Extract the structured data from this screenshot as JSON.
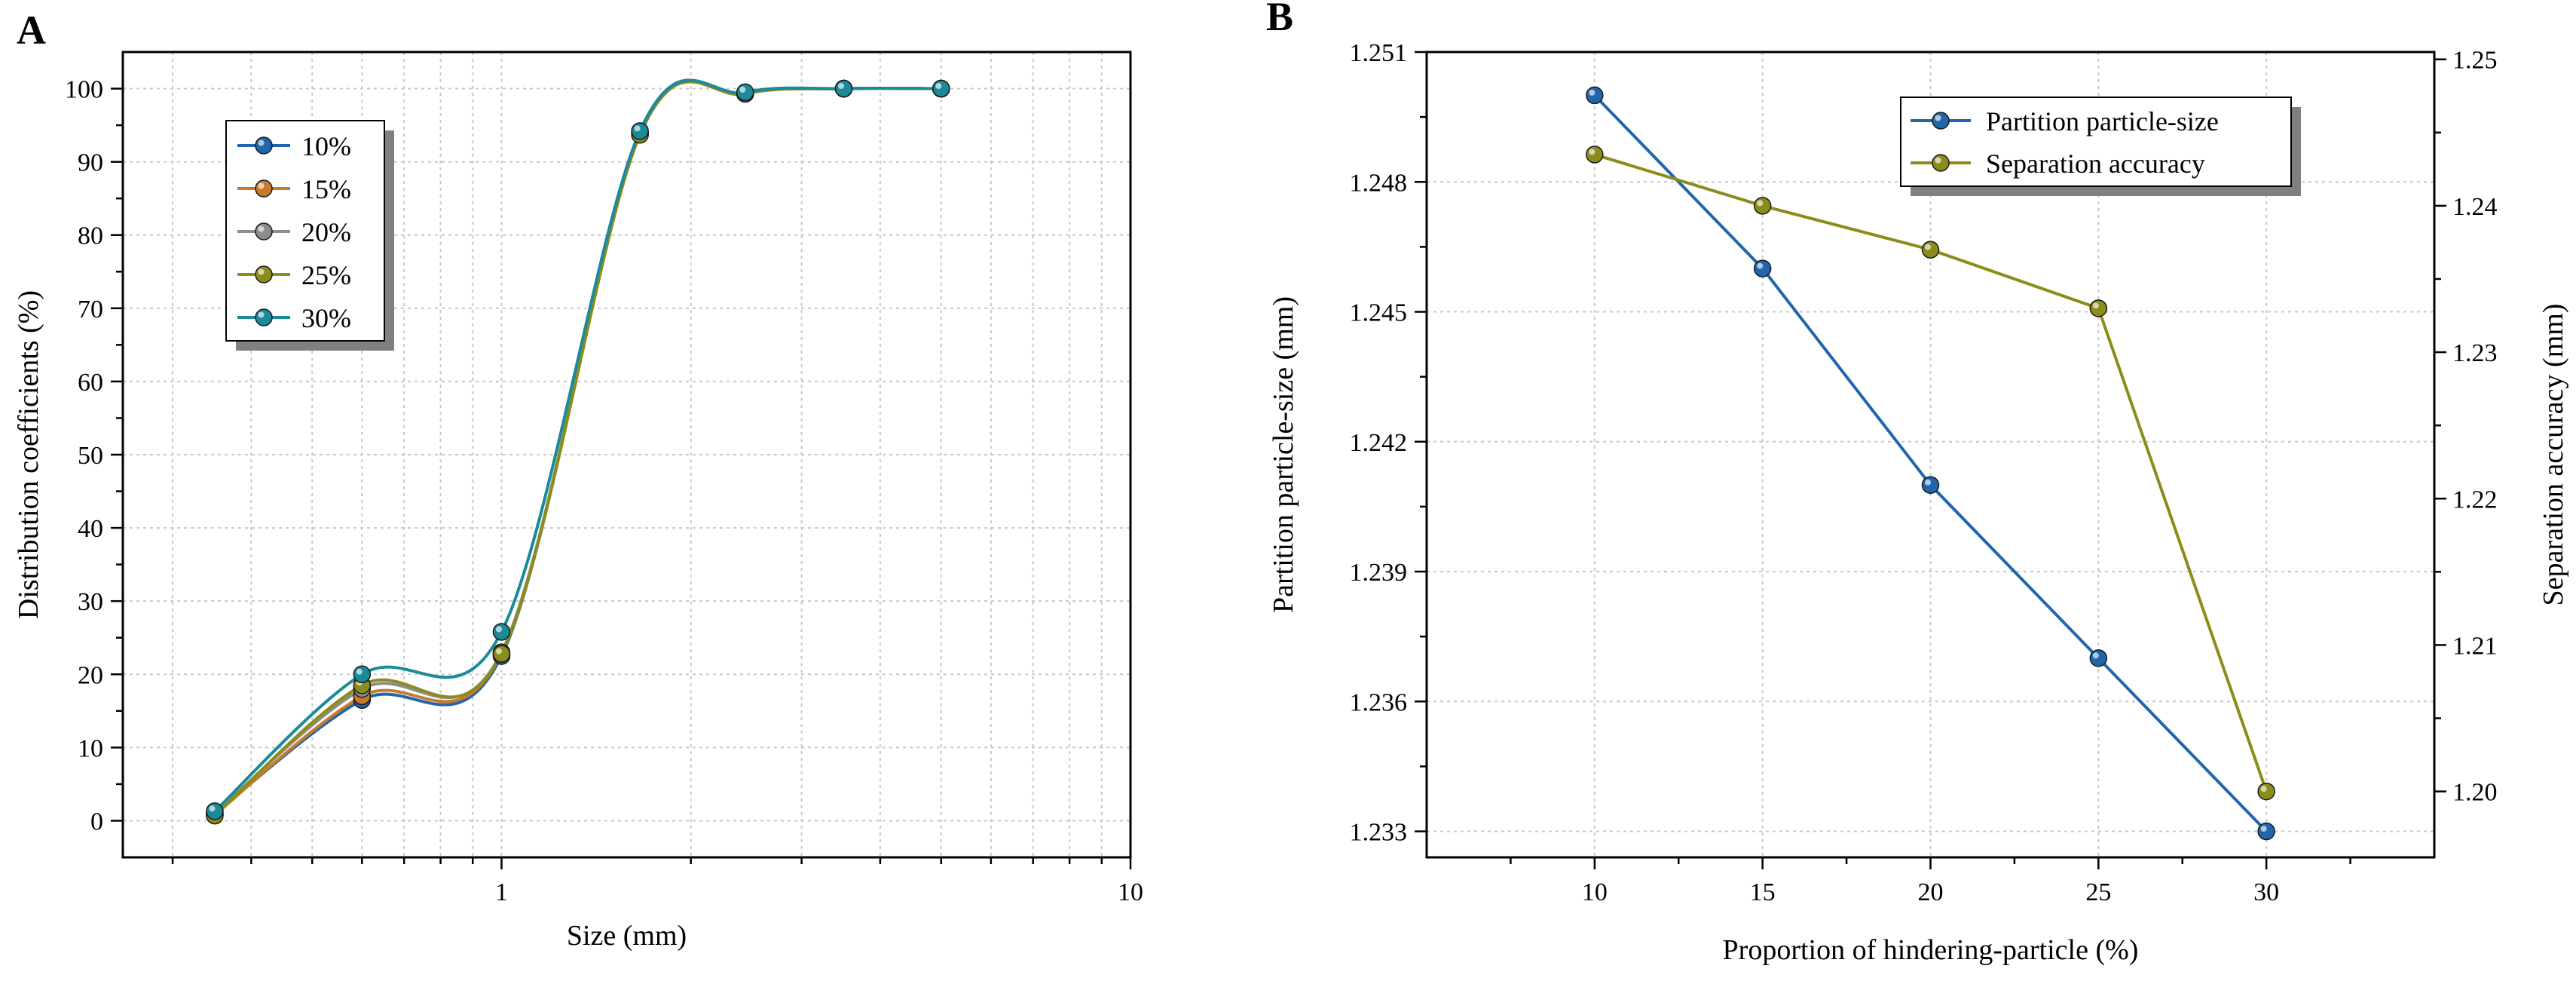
{
  "chart_data": [
    {
      "panel_label": "A",
      "type": "line",
      "xscale": "log",
      "xlabel": "Size (mm)",
      "ylabel": "Distribution coefficients (%)",
      "xlim": [
        0.25,
        10
      ],
      "ylim": [
        -5,
        105
      ],
      "xticks": [
        {
          "value": 1,
          "label": "1"
        },
        {
          "value": 10,
          "label": "10"
        }
      ],
      "yticks": [
        0,
        10,
        20,
        30,
        40,
        50,
        60,
        70,
        80,
        90,
        100
      ],
      "grid": true,
      "legend_position": "top-left",
      "x": [
        0.35,
        0.6,
        1.0,
        1.66,
        2.44,
        3.5,
        5.0
      ],
      "series": [
        {
          "name": "10%",
          "color": "#2166ac",
          "values": [
            1.0,
            16.5,
            22.5,
            94.0,
            99.3,
            100.0,
            100.0
          ]
        },
        {
          "name": "15%",
          "color": "#c87a2c",
          "values": [
            0.8,
            17.0,
            22.8,
            93.8,
            99.3,
            100.0,
            100.0
          ]
        },
        {
          "name": "20%",
          "color": "#8c8c8c",
          "values": [
            1.0,
            18.0,
            23.0,
            93.9,
            99.4,
            100.0,
            100.0
          ]
        },
        {
          "name": "25%",
          "color": "#8c8c1a",
          "values": [
            0.7,
            18.5,
            22.8,
            93.7,
            99.3,
            100.0,
            100.0
          ]
        },
        {
          "name": "30%",
          "color": "#1b8a99",
          "values": [
            1.3,
            20.0,
            25.8,
            94.2,
            99.5,
            100.0,
            100.0
          ]
        }
      ]
    },
    {
      "panel_label": "B",
      "type": "line",
      "xlabel": "Proportion of hindering-particle (%)",
      "ylabel": "Partition particle-size (mm)",
      "y2label": "Separation accuracy (mm)",
      "xlim": [
        5,
        35
      ],
      "ylim": [
        1.2324,
        1.251
      ],
      "y2lim": [
        1.1955,
        1.2505
      ],
      "xticks": [
        10,
        15,
        20,
        25,
        30
      ],
      "yticks": [
        "1.233",
        "1.236",
        "1.239",
        "1.242",
        "1.245",
        "1.248",
        "1.251"
      ],
      "y2ticks": [
        "1.20",
        "1.21",
        "1.22",
        "1.23",
        "1.24",
        "1.25"
      ],
      "grid": true,
      "legend_position": "top-right",
      "x": [
        10,
        15,
        20,
        25,
        30
      ],
      "series": [
        {
          "name": "Partition particle-size",
          "axis": "left",
          "color": "#2166ac",
          "values": [
            1.25,
            1.246,
            1.241,
            1.237,
            1.233
          ]
        },
        {
          "name": "Separation accuracy",
          "axis": "right",
          "color": "#8c8c1a",
          "values": [
            1.2435,
            1.24,
            1.237,
            1.233,
            1.2
          ]
        }
      ]
    }
  ]
}
